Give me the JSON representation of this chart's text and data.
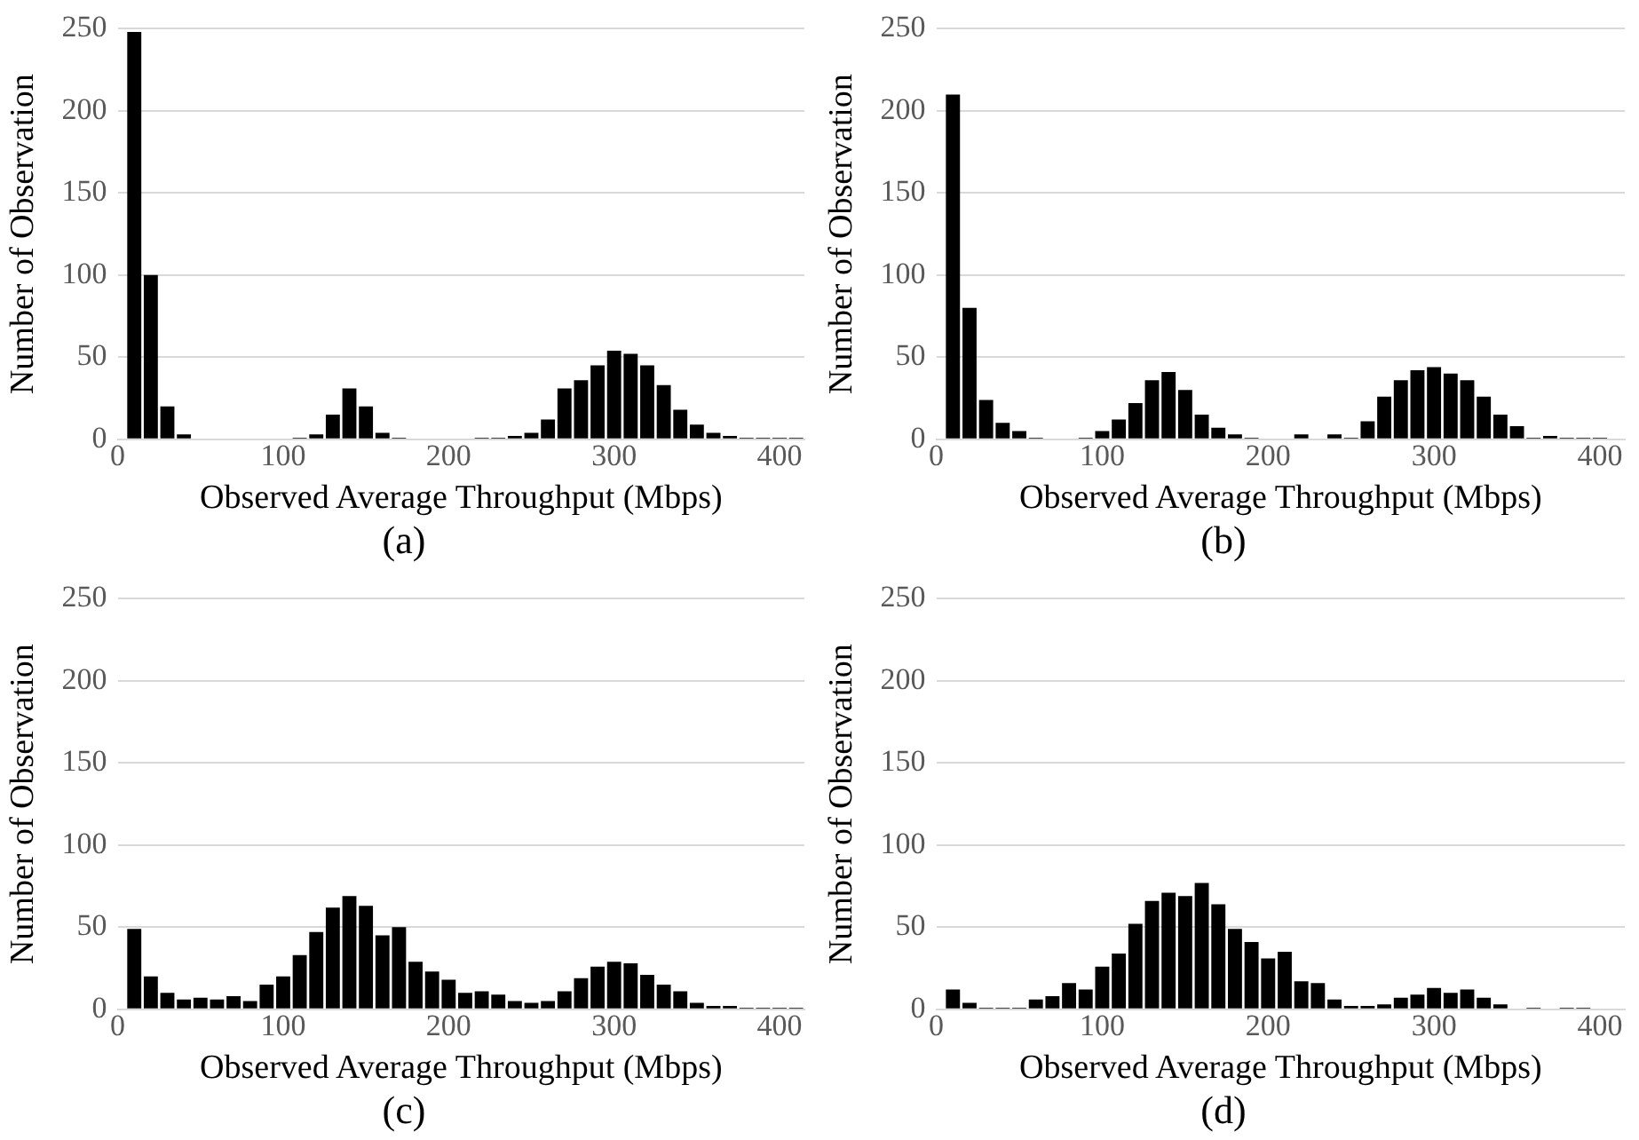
{
  "chart_data": [
    {
      "type": "histogram",
      "title": "(a)",
      "xlabel": "Observed Average Throughput (Mbps)",
      "ylabel": "Number of Observation",
      "color": "#000000",
      "bins": [
        5,
        15,
        25,
        35,
        45,
        55,
        65,
        75,
        85,
        95,
        105,
        115,
        125,
        135,
        145,
        155,
        165,
        175,
        185,
        195,
        205,
        215,
        225,
        235,
        245,
        255,
        265,
        275,
        285,
        295,
        305,
        315,
        325,
        335,
        345,
        355,
        365,
        375,
        385,
        395,
        405,
        415
      ],
      "values": [
        248,
        100,
        20,
        3,
        0,
        0,
        0,
        0,
        0,
        0,
        1,
        3,
        15,
        31,
        20,
        4,
        1,
        0,
        0,
        0,
        0,
        1,
        1,
        2,
        4,
        12,
        31,
        36,
        45,
        54,
        52,
        45,
        33,
        18,
        9,
        4,
        2,
        1,
        1,
        1,
        1
      ],
      "xlim": [
        0,
        415
      ],
      "xticks": [
        0,
        100,
        200,
        300,
        400
      ],
      "ylim": [
        0,
        250
      ],
      "yticks": [
        0,
        50,
        100,
        150,
        200,
        250
      ],
      "grid": "y"
    },
    {
      "type": "histogram",
      "title": "(b)",
      "xlabel": "Observed Average Throughput (Mbps)",
      "ylabel": "Number of Observation",
      "color": "#000000",
      "bins": [
        5,
        15,
        25,
        35,
        45,
        55,
        65,
        75,
        85,
        95,
        105,
        115,
        125,
        135,
        145,
        155,
        165,
        175,
        185,
        195,
        205,
        215,
        225,
        235,
        245,
        255,
        265,
        275,
        285,
        295,
        305,
        315,
        325,
        335,
        345,
        355,
        365,
        375,
        385,
        395,
        405,
        415
      ],
      "values": [
        210,
        80,
        24,
        10,
        5,
        1,
        0,
        0,
        1,
        5,
        12,
        22,
        36,
        41,
        30,
        15,
        7,
        3,
        1,
        0,
        0,
        3,
        0,
        3,
        1,
        11,
        26,
        36,
        42,
        44,
        40,
        36,
        26,
        15,
        8,
        1,
        2,
        1,
        1,
        1,
        0
      ],
      "xlim": [
        0,
        415
      ],
      "xticks": [
        0,
        100,
        200,
        300,
        400
      ],
      "ylim": [
        0,
        250
      ],
      "yticks": [
        0,
        50,
        100,
        150,
        200,
        250
      ],
      "grid": "y"
    },
    {
      "type": "histogram",
      "title": "(c)",
      "xlabel": "Observed Average Throughput (Mbps)",
      "ylabel": "Number of Observation",
      "color": "#000000",
      "bins": [
        5,
        15,
        25,
        35,
        45,
        55,
        65,
        75,
        85,
        95,
        105,
        115,
        125,
        135,
        145,
        155,
        165,
        175,
        185,
        195,
        205,
        215,
        225,
        235,
        245,
        255,
        265,
        275,
        285,
        295,
        305,
        315,
        325,
        335,
        345,
        355,
        365,
        375,
        385,
        395,
        405,
        415
      ],
      "values": [
        49,
        20,
        10,
        6,
        7,
        6,
        8,
        5,
        15,
        20,
        33,
        47,
        62,
        69,
        63,
        45,
        50,
        29,
        23,
        18,
        10,
        11,
        9,
        5,
        4,
        5,
        11,
        19,
        26,
        29,
        28,
        21,
        15,
        11,
        4,
        2,
        2,
        1,
        1,
        1,
        1
      ],
      "xlim": [
        0,
        415
      ],
      "xticks": [
        0,
        100,
        200,
        300,
        400
      ],
      "ylim": [
        0,
        250
      ],
      "yticks": [
        0,
        50,
        100,
        150,
        200,
        250
      ],
      "grid": "y"
    },
    {
      "type": "histogram",
      "title": "(d)",
      "xlabel": "Observed Average Throughput (Mbps)",
      "ylabel": "Number of Observation",
      "color": "#000000",
      "bins": [
        5,
        15,
        25,
        35,
        45,
        55,
        65,
        75,
        85,
        95,
        105,
        115,
        125,
        135,
        145,
        155,
        165,
        175,
        185,
        195,
        205,
        215,
        225,
        235,
        245,
        255,
        265,
        275,
        285,
        295,
        305,
        315,
        325,
        335,
        345,
        355,
        365,
        375,
        385,
        395,
        405,
        415
      ],
      "values": [
        12,
        4,
        1,
        1,
        1,
        6,
        8,
        16,
        12,
        26,
        34,
        52,
        66,
        71,
        69,
        77,
        64,
        49,
        41,
        31,
        35,
        17,
        16,
        6,
        2,
        2,
        3,
        7,
        9,
        13,
        10,
        12,
        7,
        3,
        0,
        1,
        0,
        1,
        1,
        0,
        0
      ],
      "xlim": [
        0,
        415
      ],
      "xticks": [
        0,
        100,
        200,
        300,
        400
      ],
      "ylim": [
        0,
        250
      ],
      "yticks": [
        0,
        50,
        100,
        150,
        200,
        250
      ],
      "grid": "y"
    }
  ]
}
